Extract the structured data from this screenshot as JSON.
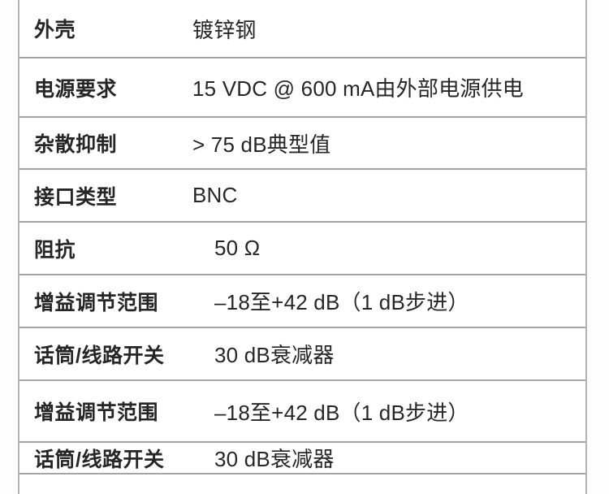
{
  "spec_table": {
    "rows": [
      {
        "label": "外壳",
        "value": "镀锌钢"
      },
      {
        "label": "电源要求",
        "value": "15 VDC @ 600 mA由外部电源供电"
      },
      {
        "label": "杂散抑制",
        "value": "> 75 dB典型值"
      },
      {
        "label": "接口类型",
        "value": "BNC"
      },
      {
        "label": "阻抗",
        "value": "50 Ω"
      },
      {
        "label": "增益调节范围",
        "value": "–18至+42 dB（1 dB步进）"
      },
      {
        "label": "话筒/线路开关",
        "value": "30 dB衰减器"
      },
      {
        "label": "增益调节范围",
        "value": "–18至+42 dB（1 dB步进）"
      },
      {
        "label": "话筒/线路开关",
        "value": "30 dB衰减器"
      }
    ]
  },
  "colors": {
    "text": "#262626",
    "divider": "#a5a5a5",
    "side_border": "#b3b3b3",
    "background": "#ffffff"
  }
}
